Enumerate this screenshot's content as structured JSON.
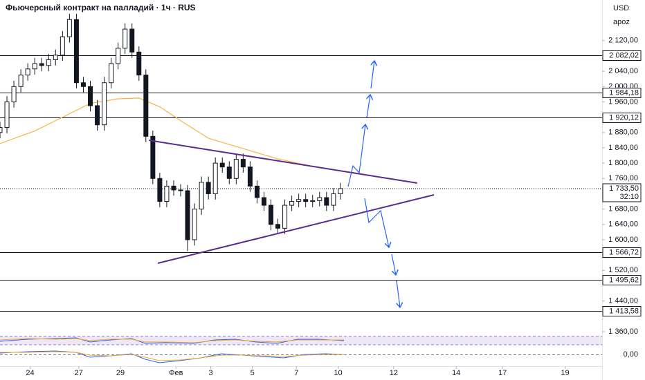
{
  "chart_data": {
    "type": "candlestick",
    "title": "Фьючерсный контракт на палладий · 1ч · RUS",
    "currency": "USD",
    "scale_mode": "apoz",
    "up_color": "#ffffff",
    "down_color": "#131722",
    "x": [
      0,
      3,
      6,
      9,
      12,
      15,
      18,
      21,
      24,
      27,
      30,
      33,
      36,
      39,
      42,
      45,
      48,
      51,
      54,
      57,
      60,
      63,
      66,
      69,
      72,
      75,
      78,
      81,
      84,
      87,
      90,
      93,
      96,
      99,
      102,
      105,
      108,
      111,
      114,
      117,
      120,
      123,
      126,
      129,
      132,
      135,
      138,
      141,
      144,
      147
    ],
    "open": [
      1880,
      1893,
      1960,
      2000,
      2030,
      2046,
      2060,
      2055,
      2070,
      2082,
      2130,
      2175,
      2010,
      2000,
      1950,
      1900,
      2010,
      2060,
      2100,
      2150,
      2090,
      2030,
      1870,
      1760,
      1700,
      1740,
      1730,
      1728,
      1600,
      1680,
      1750,
      1720,
      1800,
      1790,
      1760,
      1810,
      1790,
      1740,
      1710,
      1690,
      1640,
      1630,
      1690,
      1700,
      1705,
      1700,
      1702,
      1710,
      1690,
      1720
    ],
    "high": [
      1908,
      1975,
      2015,
      2045,
      2061,
      2075,
      2075,
      2085,
      2097,
      2145,
      2190,
      2190,
      2025,
      2015,
      1965,
      2025,
      2075,
      2115,
      2165,
      2165,
      2105,
      2045,
      1885,
      1775,
      1755,
      1755,
      1745,
      1743,
      1695,
      1765,
      1765,
      1815,
      1815,
      1805,
      1825,
      1825,
      1805,
      1755,
      1725,
      1705,
      1655,
      1705,
      1715,
      1720,
      1720,
      1717,
      1725,
      1725,
      1735,
      1748.5
    ],
    "low": [
      1865,
      1878,
      1945,
      1985,
      2015,
      2031,
      2040,
      2040,
      2055,
      2067,
      2115,
      1995,
      1985,
      1935,
      1885,
      1885,
      1995,
      2045,
      2085,
      2075,
      2015,
      1855,
      1745,
      1685,
      1685,
      1715,
      1713,
      1570,
      1585,
      1665,
      1705,
      1705,
      1775,
      1745,
      1745,
      1775,
      1725,
      1695,
      1675,
      1625,
      1615,
      1615,
      1675,
      1685,
      1685,
      1685,
      1687,
      1675,
      1675,
      1705
    ],
    "close": [
      1893,
      1960,
      2000,
      2030,
      2046,
      2060,
      2055,
      2070,
      2082,
      2130,
      2175,
      2010,
      2000,
      1950,
      1900,
      2010,
      2060,
      2100,
      2150,
      2090,
      2030,
      1870,
      1760,
      1700,
      1740,
      1730,
      1728,
      1600,
      1680,
      1750,
      1720,
      1800,
      1790,
      1760,
      1810,
      1790,
      1740,
      1710,
      1690,
      1640,
      1630,
      1690,
      1700,
      1705,
      1700,
      1702,
      1710,
      1690,
      1720,
      1733.5
    ],
    "ma": {
      "color": "#f5b342",
      "x": [
        0,
        15,
        27,
        39,
        51,
        60,
        69,
        78,
        90,
        105,
        120,
        134,
        148
      ],
      "values": [
        1851,
        1884,
        1920,
        1956,
        1968,
        1970,
        1947,
        1911,
        1865,
        1838,
        1811,
        1793,
        1779
      ]
    },
    "levels": [
      {
        "value": 2082.02,
        "label": "2 082,02"
      },
      {
        "value": 1984.18,
        "label": "1 984,18"
      },
      {
        "value": 1920.12,
        "label": "1 920,12"
      },
      {
        "value": 1566.72,
        "label": "1 566,72"
      },
      {
        "value": 1495.62,
        "label": "1 495,62"
      },
      {
        "value": 1413.58,
        "label": "1 413,58"
      }
    ],
    "last_price": {
      "value": 1733.5,
      "label": "1 733,50"
    },
    "countdown": "32:10",
    "xlim": [
      0,
      260
    ],
    "ylim": [
      1360,
      2226
    ],
    "xticks": [
      {
        "value": 13,
        "label": "24"
      },
      {
        "value": 34,
        "label": "27"
      },
      {
        "value": 52,
        "label": "29"
      },
      {
        "value": 76,
        "label": "Фев"
      },
      {
        "value": 91,
        "label": "3"
      },
      {
        "value": 109,
        "label": "5"
      },
      {
        "value": 128,
        "label": "7"
      },
      {
        "value": 146,
        "label": "10"
      },
      {
        "value": 170,
        "label": "12"
      },
      {
        "value": 197,
        "label": "14"
      },
      {
        "value": 217,
        "label": "17"
      },
      {
        "value": 244,
        "label": "19"
      }
    ],
    "yticks": [
      {
        "value": 2120,
        "label": "2 120,00"
      },
      {
        "value": 2040,
        "label": "2 040,00"
      },
      {
        "value": 2000,
        "label": "2 000,00"
      },
      {
        "value": 1960,
        "label": "1 960,00"
      },
      {
        "value": 1880,
        "label": "1 880,00"
      },
      {
        "value": 1840,
        "label": "1 840,00"
      },
      {
        "value": 1800,
        "label": "1 800,00"
      },
      {
        "value": 1760,
        "label": "1 760,00"
      },
      {
        "value": 1680,
        "label": "1 680,00"
      },
      {
        "value": 1640,
        "label": "1 640,00"
      },
      {
        "value": 1600,
        "label": "1 600,00"
      },
      {
        "value": 1520,
        "label": "1 520,00"
      },
      {
        "value": 1440,
        "label": "1 440,00"
      },
      {
        "value": 1360,
        "label": "1 360,00"
      }
    ],
    "indicator_yticks": [
      {
        "value": 0,
        "label": "0,00"
      }
    ]
  }
}
